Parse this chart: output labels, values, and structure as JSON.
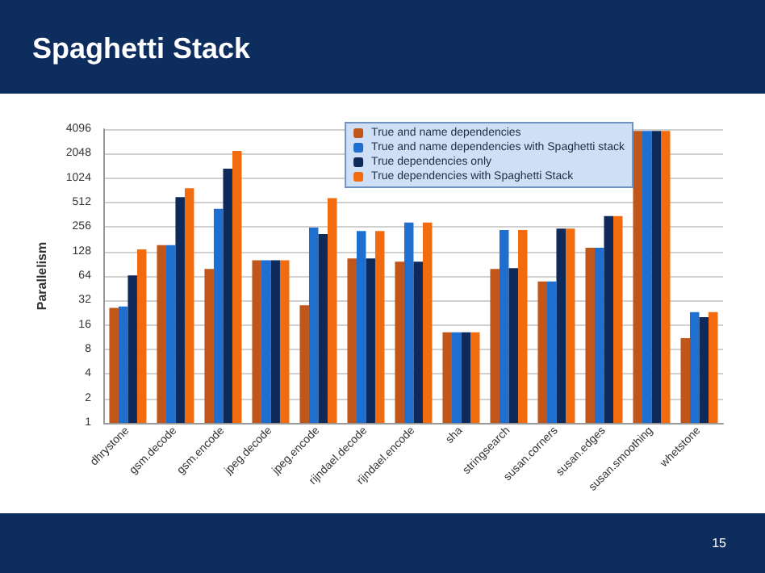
{
  "chart_data": {
    "type": "bar",
    "title": "Spaghetti Stack",
    "ylabel": "Parallelism",
    "categories": [
      "dhrystone",
      "gsm.decode",
      "gsm.encode",
      "jpeg.decode",
      "jpeg.encode",
      "rijndael.decode",
      "rijndael.encode",
      "sha",
      "stringsearch",
      "susan.corners",
      "susan.edges",
      "susan.smoothing",
      "whetstone"
    ],
    "series": [
      {
        "name": "True and name dependencies",
        "color": "#c0561a",
        "values": [
          26,
          153,
          78,
          100,
          28,
          105,
          96,
          13,
          78,
          55,
          142,
          3900,
          11
        ]
      },
      {
        "name": "True and name dependencies with Spaghetti stack",
        "color": "#1f6fd0",
        "values": [
          27,
          153,
          428,
          100,
          252,
          229,
          291,
          13,
          235,
          55,
          142,
          3900,
          23
        ]
      },
      {
        "name": "True dependencies only",
        "color": "#0d2a5a",
        "values": [
          65,
          596,
          1340,
          100,
          210,
          105,
          96,
          13,
          80,
          245,
          350,
          3900,
          20
        ]
      },
      {
        "name": "True dependencies with Spaghetti Stack",
        "color": "#f26b0f",
        "values": [
          136,
          770,
          2210,
          100,
          580,
          229,
          291,
          13,
          235,
          245,
          350,
          3900,
          23
        ]
      }
    ],
    "log": true,
    "ylim": [
      1,
      4096
    ],
    "yticks": [
      1,
      2,
      4,
      8,
      16,
      32,
      64,
      128,
      256,
      512,
      1024,
      2048,
      4096
    ],
    "grid": "y",
    "legend": "top right",
    "annotations": [
      "15"
    ]
  }
}
